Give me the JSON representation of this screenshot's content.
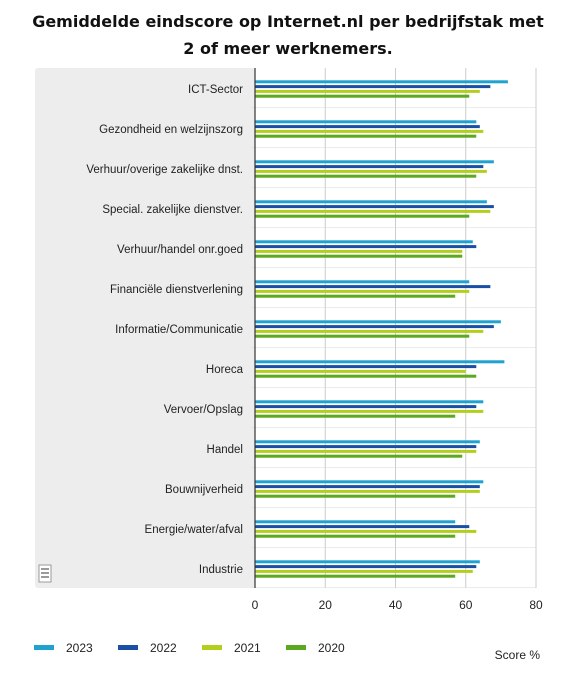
{
  "chart_data": {
    "type": "bar",
    "orientation": "horizontal",
    "title": "Gemiddelde eindscore op Internet.nl per bedrijfstak met 2 of meer werknemers.",
    "xlabel": "Score %",
    "xlim": [
      0,
      80
    ],
    "xticks": [
      "0",
      "20",
      "40",
      "60",
      "80"
    ],
    "grid": true,
    "legend_position": "bottom",
    "categories": [
      "ICT-Sector",
      "Gezondheid en welzijnszorg",
      "Verhuur/overige zakelijke dnst.",
      "Special. zakelijke dienstver.",
      "Verhuur/handel onr.goed",
      "Financiële dienstverlening",
      "Informatie/Communicatie",
      "Horeca",
      "Vervoer/Opslag",
      "Handel",
      "Bouwnijverheid",
      "Energie/water/afval",
      "Industrie"
    ],
    "series": [
      {
        "name": "2023",
        "color": "#1fa2d0",
        "values": [
          72,
          63,
          68,
          66,
          62,
          61,
          70,
          71,
          65,
          64,
          65,
          57,
          64
        ]
      },
      {
        "name": "2022",
        "color": "#1a4fa6",
        "values": [
          67,
          64,
          65,
          68,
          63,
          67,
          68,
          63,
          63,
          63,
          64,
          61,
          63
        ]
      },
      {
        "name": "2021",
        "color": "#b3cf1d",
        "values": [
          64,
          65,
          66,
          67,
          59,
          61,
          65,
          60,
          65,
          63,
          64,
          63,
          62
        ]
      },
      {
        "name": "2020",
        "color": "#5ca91f",
        "values": [
          61,
          63,
          63,
          61,
          59,
          57,
          61,
          63,
          57,
          59,
          57,
          57,
          57
        ]
      }
    ]
  },
  "colors": {
    "plot_background": "#ededed",
    "grid": "#cccccc",
    "axis": "#333333"
  },
  "icons": {
    "corner_logo": "cbs-logo-icon"
  }
}
